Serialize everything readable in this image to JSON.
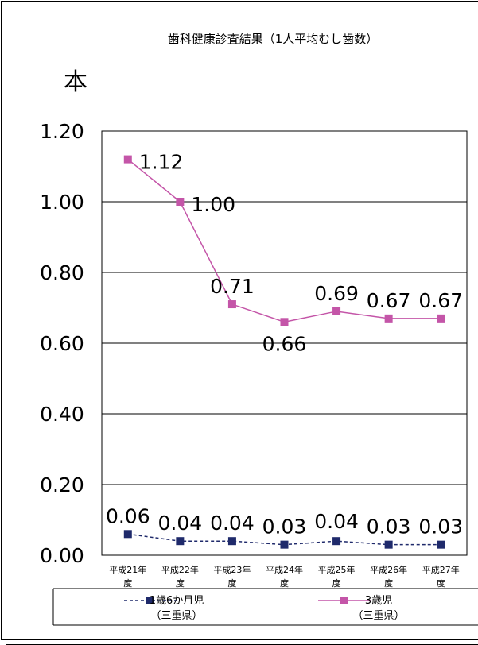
{
  "chart_data": {
    "type": "line",
    "title": "歯科健康診査結果（1人平均むし歯数）",
    "ylabel": "本",
    "xlabel": "",
    "ylim": [
      0,
      1.2
    ],
    "yticks": [
      "0.00",
      "0.20",
      "0.40",
      "0.60",
      "0.80",
      "1.00",
      "1.20"
    ],
    "grid": true,
    "legend_position": "bottom",
    "categories": [
      [
        "平成21年",
        "度"
      ],
      [
        "平成22年",
        "度"
      ],
      [
        "平成23年",
        "度"
      ],
      [
        "平成24年",
        "度"
      ],
      [
        "平成25年",
        "度"
      ],
      [
        "平成26年",
        "度"
      ],
      [
        "平成27年",
        "度"
      ]
    ],
    "series": [
      {
        "name": [
          "1歳6か月児",
          "（三重県）"
        ],
        "values": [
          0.06,
          0.04,
          0.04,
          0.03,
          0.04,
          0.03,
          0.03
        ],
        "labels": [
          "0.06",
          "0.04",
          "0.04",
          "0.03",
          "0.04",
          "0.03",
          "0.03"
        ],
        "color": "#1f2a6b",
        "line_style": "dashed",
        "marker": "square"
      },
      {
        "name": [
          "3歳児",
          "（三重県）"
        ],
        "values": [
          1.12,
          1.0,
          0.71,
          0.66,
          0.69,
          0.67,
          0.67
        ],
        "labels": [
          "1.12",
          "1.00",
          "0.71",
          "0.66",
          "0.69",
          "0.67",
          "0.67"
        ],
        "color": "#c455a8",
        "line_style": "solid",
        "marker": "square"
      }
    ]
  }
}
